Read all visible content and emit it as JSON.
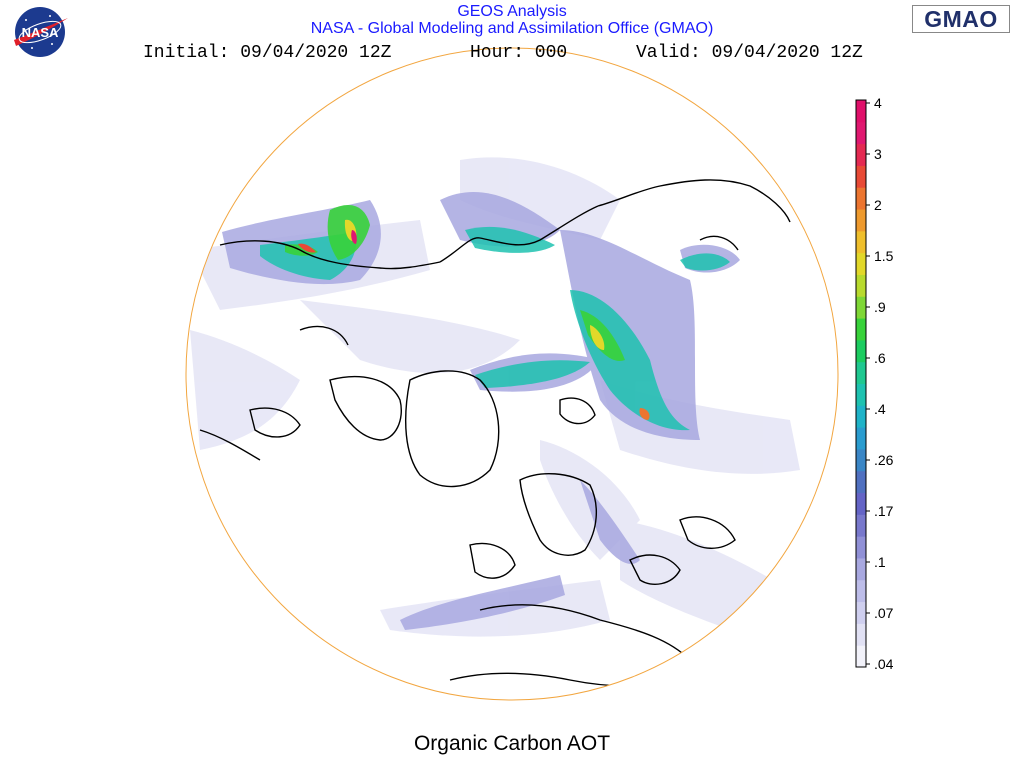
{
  "header": {
    "line1": "GEOS Analysis",
    "line2": "NASA - Global Modeling and Assimilation Office (GMAO)",
    "initial": "Initial: 09/04/2020 12Z",
    "hour": "Hour: 000",
    "valid": "Valid: 09/04/2020 12Z"
  },
  "logos": {
    "nasa": {
      "text": "NASA",
      "icon": "nasa-meatball-logo"
    },
    "gmao": {
      "text": "GMAO"
    }
  },
  "map": {
    "projection": "north-polar-stereographic",
    "product": "Organic Carbon AOT",
    "coastline_color": "#000000",
    "boundary_color": "#f2a640"
  },
  "colorbar": {
    "labels": [
      "4",
      "3",
      "2",
      "1.5",
      ".9",
      ".6",
      ".4",
      ".26",
      ".17",
      ".1",
      ".07",
      ".04"
    ],
    "colors": [
      "#f2f2fa",
      "#e1e1f4",
      "#cfcfef",
      "#bdbde9",
      "#a8a8e0",
      "#9090d6",
      "#7878cc",
      "#6464c6",
      "#5070c0",
      "#3a86c6",
      "#2a9ccf",
      "#1fb3c8",
      "#1ec2b0",
      "#1fc890",
      "#1ccc60",
      "#38d23a",
      "#7fd736",
      "#b8da2e",
      "#e2d82a",
      "#efbf2c",
      "#ee9a2e",
      "#ec7530",
      "#e84a36",
      "#e42a52",
      "#e01870",
      "#e0106a"
    ]
  },
  "bottom_title": "Organic Carbon AOT"
}
